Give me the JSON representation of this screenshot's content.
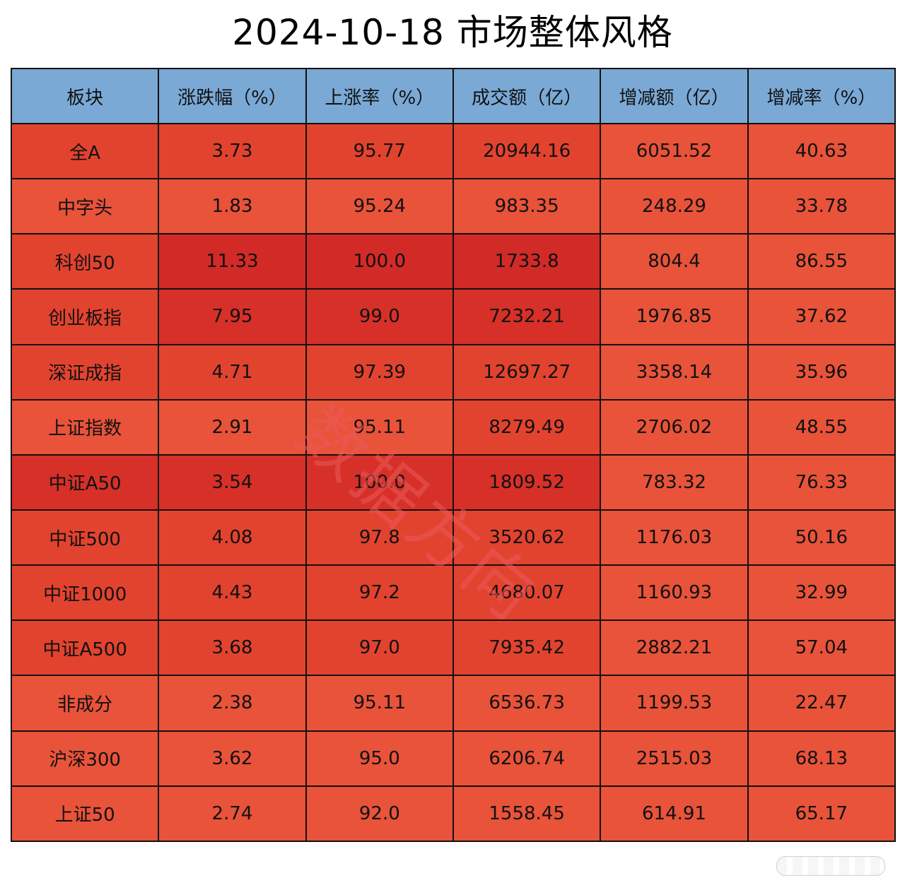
{
  "title": "2024-10-18 市场整体风格",
  "watermark": "数据方向",
  "chart_data": {
    "type": "table",
    "title": "2024-10-18 市场整体风格",
    "columns": [
      "板块",
      "涨跌幅（%）",
      "上涨率（%）",
      "成交额（亿）",
      "增减额（亿）",
      "增减率（%）"
    ],
    "rows": [
      {
        "name": "全A",
        "change": "3.73",
        "up_rate": "95.77",
        "turnover": "20944.16",
        "delta": "6051.52",
        "delta_rate": "40.63"
      },
      {
        "name": "中字头",
        "change": "1.83",
        "up_rate": "95.24",
        "turnover": "983.35",
        "delta": "248.29",
        "delta_rate": "33.78"
      },
      {
        "name": "科创50",
        "change": "11.33",
        "up_rate": "100.0",
        "turnover": "1733.8",
        "delta": "804.4",
        "delta_rate": "86.55"
      },
      {
        "name": "创业板指",
        "change": "7.95",
        "up_rate": "99.0",
        "turnover": "7232.21",
        "delta": "1976.85",
        "delta_rate": "37.62"
      },
      {
        "name": "深证成指",
        "change": "4.71",
        "up_rate": "97.39",
        "turnover": "12697.27",
        "delta": "3358.14",
        "delta_rate": "35.96"
      },
      {
        "name": "上证指数",
        "change": "2.91",
        "up_rate": "95.11",
        "turnover": "8279.49",
        "delta": "2706.02",
        "delta_rate": "48.55"
      },
      {
        "name": "中证A50",
        "change": "3.54",
        "up_rate": "100.0",
        "turnover": "1809.52",
        "delta": "783.32",
        "delta_rate": "76.33"
      },
      {
        "name": "中证500",
        "change": "4.08",
        "up_rate": "97.8",
        "turnover": "3520.62",
        "delta": "1176.03",
        "delta_rate": "50.16"
      },
      {
        "name": "中证1000",
        "change": "4.43",
        "up_rate": "97.2",
        "turnover": "4680.07",
        "delta": "1160.93",
        "delta_rate": "32.99"
      },
      {
        "name": "中证A500",
        "change": "3.68",
        "up_rate": "97.0",
        "turnover": "7935.42",
        "delta": "2882.21",
        "delta_rate": "57.04"
      },
      {
        "name": "非成分",
        "change": "2.38",
        "up_rate": "95.11",
        "turnover": "6536.73",
        "delta": "1199.53",
        "delta_rate": "22.47"
      },
      {
        "name": "沪深300",
        "change": "3.62",
        "up_rate": "95.0",
        "turnover": "6206.74",
        "delta": "2515.03",
        "delta_rate": "68.13"
      },
      {
        "name": "上证50",
        "change": "2.74",
        "up_rate": "92.0",
        "turnover": "1558.45",
        "delta": "614.91",
        "delta_rate": "65.17"
      }
    ],
    "cell_colors": {
      "header": "#7aa9d6",
      "heat_light": "#e8533a",
      "heat_mid": "#e2432f",
      "heat_dark": "#d63028",
      "heat_darkest": "#d22a27"
    },
    "row_heat": [
      [
        "mid",
        "mid",
        "mid",
        "mid",
        "light",
        "light"
      ],
      [
        "light",
        "light",
        "light",
        "light",
        "light",
        "light"
      ],
      [
        "mid",
        "darkest",
        "darkest",
        "darkest",
        "light",
        "light"
      ],
      [
        "mid",
        "dark",
        "dark",
        "dark",
        "light",
        "light"
      ],
      [
        "mid",
        "mid",
        "mid",
        "mid",
        "light",
        "light"
      ],
      [
        "light",
        "light",
        "light",
        "mid",
        "light",
        "light"
      ],
      [
        "dark",
        "dark",
        "dark",
        "dark",
        "light",
        "light"
      ],
      [
        "mid",
        "mid",
        "mid",
        "mid",
        "light",
        "light"
      ],
      [
        "mid",
        "mid",
        "mid",
        "mid",
        "light",
        "light"
      ],
      [
        "mid",
        "mid",
        "mid",
        "mid",
        "light",
        "light"
      ],
      [
        "light",
        "light",
        "light",
        "light",
        "light",
        "light"
      ],
      [
        "light",
        "light",
        "light",
        "light",
        "light",
        "light"
      ],
      [
        "light",
        "light",
        "light",
        "light",
        "light",
        "light"
      ]
    ]
  }
}
